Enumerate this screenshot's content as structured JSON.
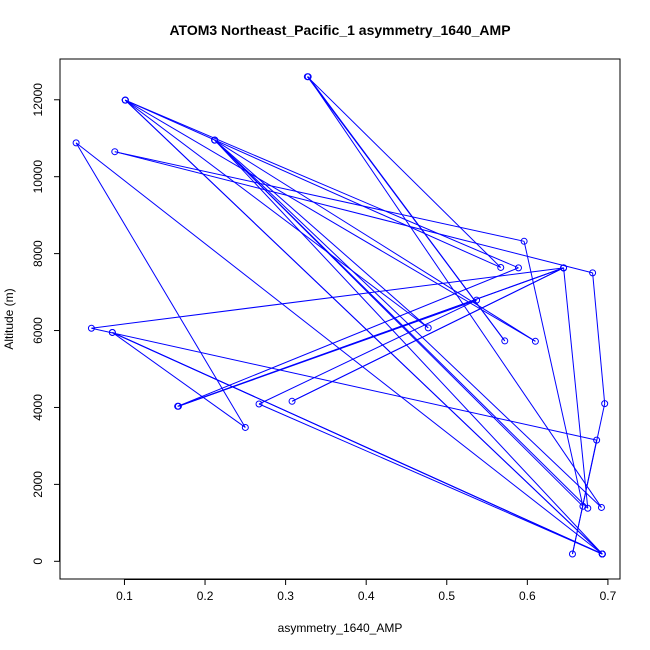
{
  "chart_data": {
    "type": "line",
    "title": "ATOM3 Northeast_Pacific_1 asymmetry_1640_AMP",
    "xlabel": "asymmetry_1640_AMP",
    "ylabel": "Altitude (m)",
    "xlim": [
      0.02,
      0.715
    ],
    "ylim": [
      -460,
      13060
    ],
    "x_ticks": [
      0.1,
      0.2,
      0.3,
      0.4,
      0.5,
      0.6,
      0.7
    ],
    "x_tick_labels": [
      "0.1",
      "0.2",
      "0.3",
      "0.4",
      "0.5",
      "0.6",
      "0.7"
    ],
    "y_ticks": [
      0,
      2000,
      4000,
      6000,
      8000,
      10000,
      12000
    ],
    "y_tick_labels": [
      "0",
      "2000",
      "4000",
      "6000",
      "8000",
      "10000",
      "12000"
    ],
    "grid": false,
    "line_color": "#0000ff",
    "series": [
      {
        "marker": "open-circle",
        "points": [
          {
            "x": 0.693,
            "y": 190
          },
          {
            "x": 0.04,
            "y": 10880
          },
          {
            "x": 0.25,
            "y": 3480
          },
          {
            "x": 0.085,
            "y": 5950
          },
          {
            "x": 0.693,
            "y": 190
          },
          {
            "x": 0.101,
            "y": 11990
          },
          {
            "x": 0.589,
            "y": 7630
          },
          {
            "x": 0.166,
            "y": 4030
          },
          {
            "x": 0.645,
            "y": 7630
          },
          {
            "x": 0.059,
            "y": 6060
          },
          {
            "x": 0.686,
            "y": 3150
          },
          {
            "x": 0.656,
            "y": 190
          },
          {
            "x": 0.696,
            "y": 4100
          },
          {
            "x": 0.681,
            "y": 7500
          },
          {
            "x": 0.088,
            "y": 10650
          },
          {
            "x": 0.596,
            "y": 8320
          },
          {
            "x": 0.669,
            "y": 1430
          },
          {
            "x": 0.212,
            "y": 10950
          },
          {
            "x": 0.692,
            "y": 1400
          },
          {
            "x": 0.328,
            "y": 12600
          },
          {
            "x": 0.572,
            "y": 5730
          },
          {
            "x": 0.327,
            "y": 12600
          },
          {
            "x": 0.567,
            "y": 7640
          },
          {
            "x": 0.101,
            "y": 11990
          },
          {
            "x": 0.61,
            "y": 5720
          },
          {
            "x": 0.212,
            "y": 10950
          },
          {
            "x": 0.477,
            "y": 6070
          },
          {
            "x": 0.101,
            "y": 11990
          },
          {
            "x": 0.693,
            "y": 190
          },
          {
            "x": 0.267,
            "y": 4090
          },
          {
            "x": 0.537,
            "y": 6790
          },
          {
            "x": 0.167,
            "y": 4030
          },
          {
            "x": 0.645,
            "y": 7630
          },
          {
            "x": 0.308,
            "y": 4160
          },
          {
            "x": 0.645,
            "y": 7630
          },
          {
            "x": 0.675,
            "y": 1380
          },
          {
            "x": 0.212,
            "y": 10950
          },
          {
            "x": 0.693,
            "y": 190
          },
          {
            "x": 0.085,
            "y": 5950
          },
          {
            "x": 0.693,
            "y": 190
          }
        ]
      }
    ]
  }
}
